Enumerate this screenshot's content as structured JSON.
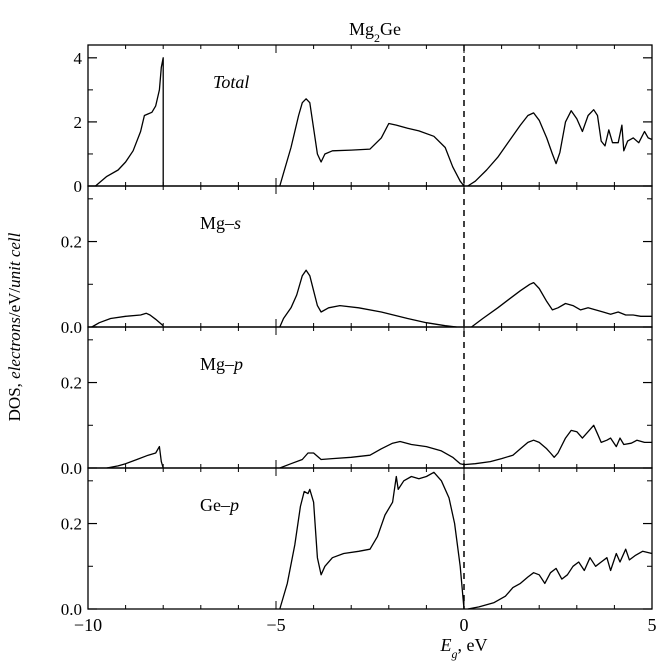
{
  "chart_data": {
    "type": "line",
    "title": "Mg₂Ge",
    "xlabel_var": "E",
    "xlabel_sub": "g",
    "xlabel_unit": ", eV",
    "ylabel_prefix": "DOS, ",
    "ylabel_italic": "electrons",
    "ylabel_mid": "/eV/",
    "ylabel_italic2": "unit cell",
    "xlim": [
      -10,
      5
    ],
    "xticks": [
      -10,
      -5,
      0,
      5
    ],
    "xtick_labels": [
      "−10",
      "−5",
      "0",
      "5"
    ],
    "fermi_line_x": 0,
    "grid": false,
    "panels": [
      {
        "name": "Total",
        "label_main": "Total",
        "label_italic_part": "",
        "label_italic": true,
        "ylim": [
          0,
          4.4
        ],
        "yticks": [
          0,
          2,
          4
        ],
        "ytick_labels": [
          "0",
          "2",
          "4"
        ],
        "minor_yticks": [
          1,
          3
        ],
        "segments": [
          [
            [
              -9.8,
              0
            ],
            [
              -9.7,
              0.1
            ],
            [
              -9.5,
              0.3
            ],
            [
              -9.2,
              0.5
            ],
            [
              -9.0,
              0.75
            ],
            [
              -8.8,
              1.1
            ],
            [
              -8.6,
              1.7
            ],
            [
              -8.5,
              2.2
            ],
            [
              -8.4,
              2.25
            ],
            [
              -8.3,
              2.3
            ],
            [
              -8.2,
              2.5
            ],
            [
              -8.1,
              3.0
            ],
            [
              -8.05,
              3.7
            ],
            [
              -8.0,
              4.0
            ],
            [
              -8.0,
              0
            ]
          ],
          [
            [
              -4.9,
              0
            ],
            [
              -4.8,
              0.4
            ],
            [
              -4.6,
              1.2
            ],
            [
              -4.4,
              2.2
            ],
            [
              -4.3,
              2.6
            ],
            [
              -4.2,
              2.72
            ],
            [
              -4.1,
              2.6
            ],
            [
              -4.0,
              1.8
            ],
            [
              -3.9,
              1.0
            ],
            [
              -3.8,
              0.75
            ],
            [
              -3.7,
              1.0
            ],
            [
              -3.5,
              1.1
            ],
            [
              -3.0,
              1.12
            ],
            [
              -2.5,
              1.15
            ],
            [
              -2.2,
              1.5
            ],
            [
              -2.0,
              1.95
            ],
            [
              -1.8,
              1.9
            ],
            [
              -1.5,
              1.8
            ],
            [
              -1.2,
              1.72
            ],
            [
              -0.8,
              1.55
            ],
            [
              -0.5,
              1.2
            ],
            [
              -0.3,
              0.6
            ],
            [
              -0.1,
              0.15
            ],
            [
              0,
              0
            ]
          ],
          [
            [
              0.1,
              0
            ],
            [
              0.3,
              0.15
            ],
            [
              0.6,
              0.5
            ],
            [
              0.9,
              0.9
            ],
            [
              1.2,
              1.4
            ],
            [
              1.5,
              1.9
            ],
            [
              1.7,
              2.2
            ],
            [
              1.85,
              2.28
            ],
            [
              2.0,
              2.05
            ],
            [
              2.2,
              1.5
            ],
            [
              2.35,
              1.0
            ],
            [
              2.45,
              0.7
            ],
            [
              2.55,
              1.05
            ],
            [
              2.7,
              2.0
            ],
            [
              2.85,
              2.35
            ],
            [
              3.0,
              2.1
            ],
            [
              3.15,
              1.7
            ],
            [
              3.3,
              2.2
            ],
            [
              3.45,
              2.38
            ],
            [
              3.55,
              2.2
            ],
            [
              3.65,
              1.4
            ],
            [
              3.75,
              1.25
            ],
            [
              3.85,
              1.75
            ],
            [
              3.95,
              1.35
            ],
            [
              4.1,
              1.35
            ],
            [
              4.2,
              1.9
            ],
            [
              4.25,
              1.1
            ],
            [
              4.35,
              1.4
            ],
            [
              4.5,
              1.5
            ],
            [
              4.65,
              1.35
            ],
            [
              4.8,
              1.7
            ],
            [
              4.9,
              1.5
            ],
            [
              5.0,
              1.45
            ]
          ]
        ]
      },
      {
        "name": "Mg–s",
        "label_main": "Mg–",
        "label_italic_part": "s",
        "label_italic": false,
        "ylim": [
          0,
          0.33
        ],
        "yticks": [
          0,
          0.2
        ],
        "ytick_labels": [
          "0.0",
          "0.2"
        ],
        "minor_yticks": [
          0.1,
          0.3
        ],
        "segments": [
          [
            [
              -9.9,
              0
            ],
            [
              -9.7,
              0.01
            ],
            [
              -9.4,
              0.02
            ],
            [
              -9.0,
              0.025
            ],
            [
              -8.6,
              0.028
            ],
            [
              -8.45,
              0.032
            ],
            [
              -8.35,
              0.028
            ],
            [
              -8.2,
              0.018
            ],
            [
              -8.0,
              0.003
            ]
          ],
          [
            [
              -4.9,
              0
            ],
            [
              -4.8,
              0.02
            ],
            [
              -4.6,
              0.045
            ],
            [
              -4.45,
              0.075
            ],
            [
              -4.3,
              0.12
            ],
            [
              -4.2,
              0.133
            ],
            [
              -4.1,
              0.12
            ],
            [
              -4.0,
              0.085
            ],
            [
              -3.9,
              0.05
            ],
            [
              -3.8,
              0.035
            ],
            [
              -3.6,
              0.045
            ],
            [
              -3.3,
              0.05
            ],
            [
              -2.8,
              0.045
            ],
            [
              -2.2,
              0.035
            ],
            [
              -1.5,
              0.02
            ],
            [
              -1.0,
              0.01
            ],
            [
              -0.5,
              0.003
            ],
            [
              -0.2,
              0
            ]
          ],
          [
            [
              0.2,
              0
            ],
            [
              0.5,
              0.02
            ],
            [
              0.9,
              0.045
            ],
            [
              1.2,
              0.065
            ],
            [
              1.5,
              0.085
            ],
            [
              1.75,
              0.1
            ],
            [
              1.85,
              0.104
            ],
            [
              2.0,
              0.09
            ],
            [
              2.2,
              0.06
            ],
            [
              2.35,
              0.04
            ],
            [
              2.5,
              0.045
            ],
            [
              2.7,
              0.055
            ],
            [
              2.9,
              0.05
            ],
            [
              3.1,
              0.04
            ],
            [
              3.3,
              0.045
            ],
            [
              3.5,
              0.04
            ],
            [
              3.7,
              0.035
            ],
            [
              3.9,
              0.03
            ],
            [
              4.1,
              0.035
            ],
            [
              4.3,
              0.028
            ],
            [
              4.5,
              0.028
            ],
            [
              4.7,
              0.025
            ],
            [
              5.0,
              0.025
            ]
          ]
        ]
      },
      {
        "name": "Mg–p",
        "label_main": "Mg–",
        "label_italic_part": "p",
        "label_italic": false,
        "ylim": [
          0,
          0.33
        ],
        "yticks": [
          0,
          0.2
        ],
        "ytick_labels": [
          "0.0",
          "0.2"
        ],
        "minor_yticks": [
          0.1,
          0.3
        ],
        "segments": [
          [
            [
              -9.5,
              0
            ],
            [
              -9.2,
              0.005
            ],
            [
              -9.0,
              0.01
            ],
            [
              -8.7,
              0.02
            ],
            [
              -8.4,
              0.03
            ],
            [
              -8.2,
              0.035
            ],
            [
              -8.1,
              0.05
            ],
            [
              -8.05,
              0.015
            ],
            [
              -8.0,
              0
            ]
          ],
          [
            [
              -4.9,
              0
            ],
            [
              -4.6,
              0.01
            ],
            [
              -4.3,
              0.02
            ],
            [
              -4.15,
              0.035
            ],
            [
              -4.0,
              0.035
            ],
            [
              -3.8,
              0.02
            ],
            [
              -3.5,
              0.022
            ],
            [
              -3.0,
              0.025
            ],
            [
              -2.5,
              0.03
            ],
            [
              -2.2,
              0.045
            ],
            [
              -1.9,
              0.058
            ],
            [
              -1.7,
              0.062
            ],
            [
              -1.4,
              0.055
            ],
            [
              -1.0,
              0.05
            ],
            [
              -0.6,
              0.04
            ],
            [
              -0.3,
              0.025
            ],
            [
              -0.1,
              0.01
            ],
            [
              0,
              0.008
            ]
          ],
          [
            [
              0,
              0.008
            ],
            [
              0.3,
              0.01
            ],
            [
              0.7,
              0.015
            ],
            [
              1.0,
              0.022
            ],
            [
              1.3,
              0.03
            ],
            [
              1.5,
              0.045
            ],
            [
              1.7,
              0.06
            ],
            [
              1.85,
              0.065
            ],
            [
              2.0,
              0.06
            ],
            [
              2.2,
              0.045
            ],
            [
              2.3,
              0.035
            ],
            [
              2.4,
              0.025
            ],
            [
              2.5,
              0.035
            ],
            [
              2.7,
              0.07
            ],
            [
              2.85,
              0.088
            ],
            [
              3.0,
              0.085
            ],
            [
              3.15,
              0.07
            ],
            [
              3.3,
              0.085
            ],
            [
              3.45,
              0.1
            ],
            [
              3.55,
              0.08
            ],
            [
              3.65,
              0.06
            ],
            [
              3.8,
              0.065
            ],
            [
              3.9,
              0.07
            ],
            [
              4.05,
              0.05
            ],
            [
              4.15,
              0.07
            ],
            [
              4.25,
              0.055
            ],
            [
              4.45,
              0.058
            ],
            [
              4.6,
              0.065
            ],
            [
              4.8,
              0.06
            ],
            [
              5.0,
              0.06
            ]
          ]
        ]
      },
      {
        "name": "Ge–p",
        "label_main": "Ge–",
        "label_italic_part": "p",
        "label_italic": false,
        "ylim": [
          0,
          0.33
        ],
        "yticks": [
          0,
          0.2
        ],
        "ytick_labels": [
          "0.0",
          "0.2"
        ],
        "minor_yticks": [
          0.1,
          0.3
        ],
        "segments": [
          [
            [
              -4.9,
              0
            ],
            [
              -4.7,
              0.06
            ],
            [
              -4.5,
              0.15
            ],
            [
              -4.35,
              0.24
            ],
            [
              -4.25,
              0.275
            ],
            [
              -4.15,
              0.27
            ],
            [
              -4.1,
              0.28
            ],
            [
              -4.0,
              0.25
            ],
            [
              -3.9,
              0.12
            ],
            [
              -3.8,
              0.08
            ],
            [
              -3.7,
              0.1
            ],
            [
              -3.5,
              0.12
            ],
            [
              -3.2,
              0.13
            ],
            [
              -2.8,
              0.135
            ],
            [
              -2.5,
              0.14
            ],
            [
              -2.3,
              0.17
            ],
            [
              -2.1,
              0.22
            ],
            [
              -1.9,
              0.25
            ],
            [
              -1.8,
              0.31
            ],
            [
              -1.75,
              0.28
            ],
            [
              -1.6,
              0.3
            ],
            [
              -1.4,
              0.31
            ],
            [
              -1.2,
              0.305
            ],
            [
              -1.0,
              0.31
            ],
            [
              -0.8,
              0.32
            ],
            [
              -0.6,
              0.3
            ],
            [
              -0.4,
              0.26
            ],
            [
              -0.25,
              0.2
            ],
            [
              -0.1,
              0.1
            ],
            [
              0,
              0
            ]
          ],
          [
            [
              0.1,
              0
            ],
            [
              0.4,
              0.005
            ],
            [
              0.8,
              0.015
            ],
            [
              1.1,
              0.03
            ],
            [
              1.3,
              0.05
            ],
            [
              1.5,
              0.06
            ],
            [
              1.7,
              0.075
            ],
            [
              1.85,
              0.085
            ],
            [
              2.0,
              0.08
            ],
            [
              2.15,
              0.06
            ],
            [
              2.3,
              0.085
            ],
            [
              2.45,
              0.095
            ],
            [
              2.6,
              0.07
            ],
            [
              2.75,
              0.08
            ],
            [
              2.9,
              0.1
            ],
            [
              3.05,
              0.11
            ],
            [
              3.2,
              0.09
            ],
            [
              3.35,
              0.12
            ],
            [
              3.5,
              0.1
            ],
            [
              3.65,
              0.11
            ],
            [
              3.8,
              0.12
            ],
            [
              3.9,
              0.09
            ],
            [
              4.05,
              0.13
            ],
            [
              4.15,
              0.11
            ],
            [
              4.3,
              0.14
            ],
            [
              4.4,
              0.115
            ],
            [
              4.55,
              0.125
            ],
            [
              4.75,
              0.135
            ],
            [
              5.0,
              0.13
            ]
          ]
        ]
      }
    ]
  }
}
